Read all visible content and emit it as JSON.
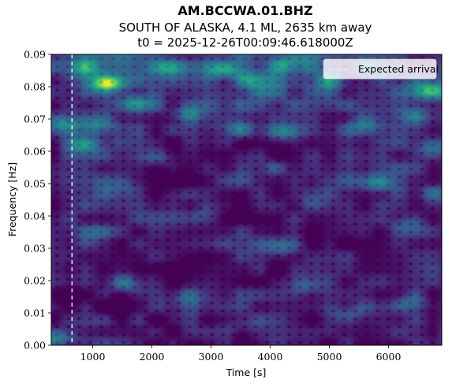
{
  "chart_data": {
    "type": "heatmap",
    "title_lines": [
      "AM.BCCWA.01.BHZ",
      "SOUTH OF ALASKA, 4.1 ML, 2635 km away",
      "t0 = 2025-12-26T00:09:46.618000Z"
    ],
    "xlabel": "Time [s]",
    "ylabel": "Frequency [Hz]",
    "xlim": [
      300,
      6900
    ],
    "ylim": [
      0,
      0.09
    ],
    "xticks": [
      1000,
      2000,
      3000,
      4000,
      5000,
      6000
    ],
    "xtick_labels": [
      "1000",
      "2000",
      "3000",
      "4000",
      "5000",
      "6000"
    ],
    "yticks": [
      0,
      0.01,
      0.02,
      0.03,
      0.04,
      0.05,
      0.06,
      0.07,
      0.08,
      0.09
    ],
    "ytick_labels": [
      "0.00",
      "0.01",
      "0.02",
      "0.03",
      "0.04",
      "0.05",
      "0.06",
      "0.07",
      "0.08",
      "0.09"
    ],
    "colormap": "viridis",
    "expected_arrival_time": 650,
    "legend": {
      "entries": [
        "Expected arrival"
      ],
      "location": "upper-right"
    },
    "hotspots": [
      {
        "t": 1250,
        "f": 0.081,
        "intensity": 1.0
      },
      {
        "t": 820,
        "f": 0.086,
        "intensity": 0.6
      },
      {
        "t": 1700,
        "f": 0.075,
        "intensity": 0.45
      },
      {
        "t": 2300,
        "f": 0.086,
        "intensity": 0.45
      },
      {
        "t": 3200,
        "f": 0.085,
        "intensity": 0.5
      },
      {
        "t": 3700,
        "f": 0.082,
        "intensity": 0.45
      },
      {
        "t": 4300,
        "f": 0.087,
        "intensity": 0.45
      },
      {
        "t": 5000,
        "f": 0.082,
        "intensity": 0.45
      },
      {
        "t": 5700,
        "f": 0.086,
        "intensity": 0.45
      },
      {
        "t": 6700,
        "f": 0.079,
        "intensity": 0.6
      },
      {
        "t": 500,
        "f": 0.069,
        "intensity": 0.55
      },
      {
        "t": 1100,
        "f": 0.068,
        "intensity": 0.45
      },
      {
        "t": 2600,
        "f": 0.072,
        "intensity": 0.4
      },
      {
        "t": 3400,
        "f": 0.067,
        "intensity": 0.4
      },
      {
        "t": 4200,
        "f": 0.066,
        "intensity": 0.45
      },
      {
        "t": 5600,
        "f": 0.068,
        "intensity": 0.4
      },
      {
        "t": 6400,
        "f": 0.071,
        "intensity": 0.45
      },
      {
        "t": 850,
        "f": 0.062,
        "intensity": 0.5
      },
      {
        "t": 6750,
        "f": 0.061,
        "intensity": 0.4
      },
      {
        "t": 2100,
        "f": 0.058,
        "intensity": 0.3
      },
      {
        "t": 3900,
        "f": 0.055,
        "intensity": 0.3
      },
      {
        "t": 5800,
        "f": 0.05,
        "intensity": 0.35
      },
      {
        "t": 6800,
        "f": 0.047,
        "intensity": 0.35
      },
      {
        "t": 1500,
        "f": 0.048,
        "intensity": 0.3
      },
      {
        "t": 4700,
        "f": 0.044,
        "intensity": 0.3
      },
      {
        "t": 2900,
        "f": 0.04,
        "intensity": 0.28
      },
      {
        "t": 6300,
        "f": 0.038,
        "intensity": 0.3
      },
      {
        "t": 1000,
        "f": 0.035,
        "intensity": 0.25
      },
      {
        "t": 4200,
        "f": 0.03,
        "intensity": 0.28
      },
      {
        "t": 1600,
        "f": 0.019,
        "intensity": 0.45
      },
      {
        "t": 4600,
        "f": 0.019,
        "intensity": 0.45
      },
      {
        "t": 6400,
        "f": 0.013,
        "intensity": 0.45
      },
      {
        "t": 2600,
        "f": 0.015,
        "intensity": 0.3
      },
      {
        "t": 5300,
        "f": 0.01,
        "intensity": 0.28
      },
      {
        "t": 380,
        "f": 0.002,
        "intensity": 0.55
      },
      {
        "t": 3500,
        "f": 0.006,
        "intensity": 0.25
      }
    ]
  }
}
